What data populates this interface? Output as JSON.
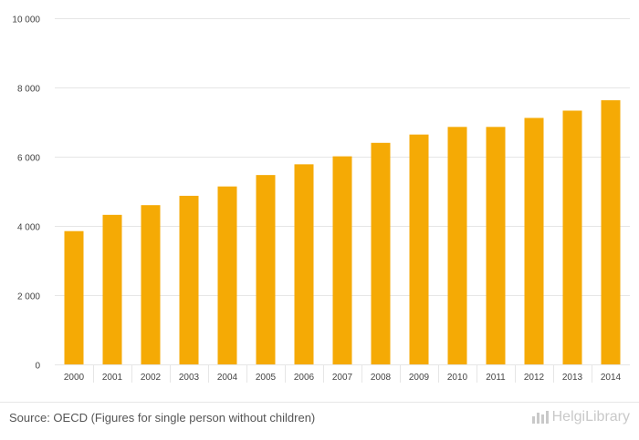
{
  "chart_data": {
    "type": "bar",
    "title": "",
    "xlabel": "",
    "ylabel": "",
    "categories": [
      "2000",
      "2001",
      "2002",
      "2003",
      "2004",
      "2005",
      "2006",
      "2007",
      "2008",
      "2009",
      "2010",
      "2011",
      "2012",
      "2013",
      "2014"
    ],
    "values": [
      3850,
      4320,
      4600,
      4870,
      5140,
      5470,
      5780,
      6010,
      6400,
      6640,
      6860,
      6860,
      7120,
      7330,
      7630
    ],
    "ylim": [
      0,
      10000
    ],
    "yticks": [
      0,
      2000,
      4000,
      6000,
      8000,
      10000
    ],
    "ytick_labels": [
      "0",
      "2 000",
      "4 000",
      "6 000",
      "8 000",
      "10 000"
    ],
    "bar_color": "#F5AA05",
    "grid": true,
    "legend": "none"
  },
  "footer": {
    "source": "Source: OECD (Figures for single person without children)",
    "brand": "HelgiLibrary",
    "brand_icon": "bar-chart-icon"
  },
  "colors": {
    "bar": "#F5AA05",
    "grid": "#e6e6e6",
    "axis_text": "#444444",
    "brand": "#c9c9c9"
  }
}
